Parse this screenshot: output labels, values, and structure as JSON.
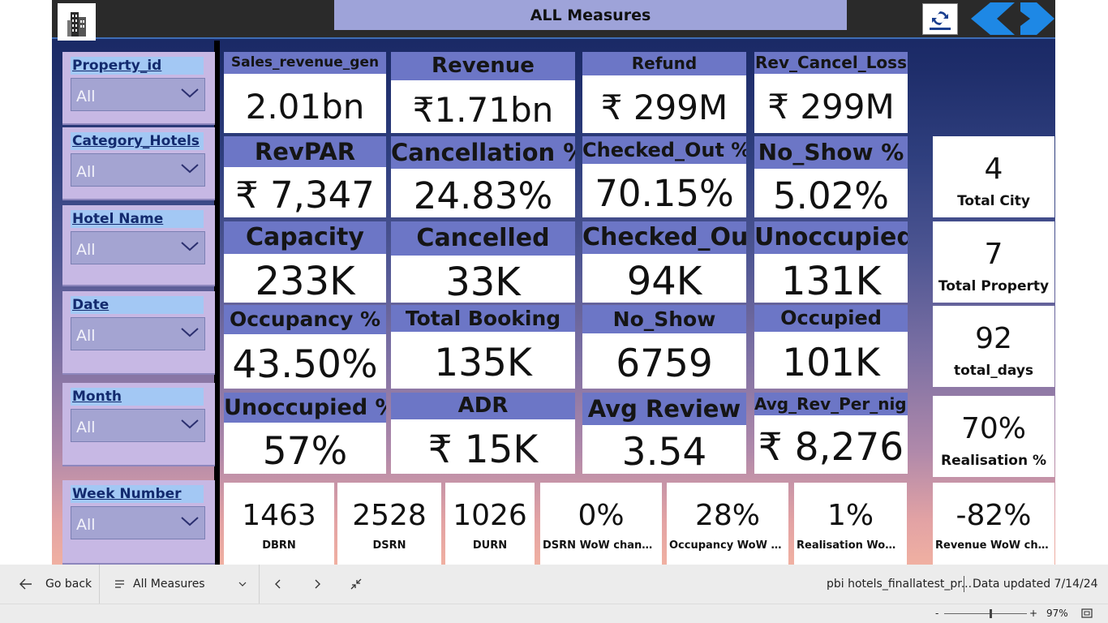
{
  "header": {
    "title": "ALL Measures"
  },
  "slicers": [
    {
      "label": "Property_id",
      "value": "All"
    },
    {
      "label": "Category_Hotels",
      "value": "All"
    },
    {
      "label": "Hotel Name",
      "value": "All"
    },
    {
      "label": "Date",
      "value": "All"
    },
    {
      "label": "Month",
      "value": "All"
    },
    {
      "label": "Week Number",
      "value": "All"
    }
  ],
  "kpis": [
    {
      "label": "Sales_revenue_gen",
      "value": "2.01bn"
    },
    {
      "label": "Revenue",
      "value": "₹1.71bn"
    },
    {
      "label": "Refund",
      "value": "₹ 299M"
    },
    {
      "label": "Rev_Cancel_Loss",
      "value": "₹ 299M"
    },
    {
      "label": "RevPAR",
      "value": "₹ 7,347"
    },
    {
      "label": "Cancellation %",
      "value": "24.83%"
    },
    {
      "label": "Checked_Out %",
      "value": "70.15%"
    },
    {
      "label": "No_Show %",
      "value": "5.02%"
    },
    {
      "label": "Capacity",
      "value": "233K"
    },
    {
      "label": "Cancelled",
      "value": "33K"
    },
    {
      "label": "Checked_Out",
      "value": "94K"
    },
    {
      "label": "Unoccupied",
      "value": "131K"
    },
    {
      "label": "Occupancy %",
      "value": "43.50%"
    },
    {
      "label": "Total Booking",
      "value": "135K"
    },
    {
      "label": "No_Show",
      "value": "6759"
    },
    {
      "label": "Occupied",
      "value": "101K"
    },
    {
      "label": "Unoccupied %",
      "value": "57%"
    },
    {
      "label": "ADR",
      "value": "₹ 15K"
    },
    {
      "label": "Avg Review",
      "value": "3.54"
    },
    {
      "label": "Avg_Rev_Per_night",
      "value": "₹ 8,276"
    }
  ],
  "side_cards": [
    {
      "value": "4",
      "label": "Total City"
    },
    {
      "value": "7",
      "label": "Total Property"
    },
    {
      "value": "92",
      "label": "total_days"
    },
    {
      "value": "70%",
      "label": "Realisation %"
    }
  ],
  "bottom_cards": [
    {
      "value": "1463",
      "label": "DBRN"
    },
    {
      "value": "2528",
      "label": "DSRN"
    },
    {
      "value": "1026",
      "label": "DURN"
    },
    {
      "value": "0%",
      "label": "DSRN WoW change %"
    },
    {
      "value": "28%",
      "label": "Occupancy WoW cha..."
    },
    {
      "value": "1%",
      "label": "Realisation WoW c..."
    },
    {
      "value": "-82%",
      "label": "Revenue WoW chang..."
    }
  ],
  "footer": {
    "go_back": "Go back",
    "page_selector": "All Measures",
    "file_name": "pbi hotels_finallatest_pr...",
    "data_updated": "Data updated 7/14/24",
    "zoom_minus": "-",
    "zoom_plus": "+",
    "zoom_level": "97%",
    "zoom_fraction": 0.55
  },
  "colors": {
    "label_band": "#6c76c6",
    "title_banner": "#9ea3d9",
    "slicer_bg": "#c7b8e4",
    "slicer_title_bg": "#a3c8f4",
    "nav_arrow": "#1e88e5"
  }
}
